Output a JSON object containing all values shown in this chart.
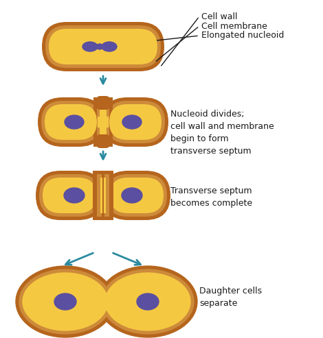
{
  "bg_color": "#ffffff",
  "wall_color": "#b5651d",
  "membrane_color": "#cd8b3a",
  "fill_color": "#f5c842",
  "nucleoid_color": "#5a4fa0",
  "arrow_color": "#2a8a9f",
  "label_color": "#1a1a1a",
  "line_color": "#111111",
  "labels_stage1": [
    "Cell wall",
    "Cell membrane",
    "Elongated nucleoid"
  ],
  "label_stage2": "Nucleoid divides;\ncell wall and membrane\nbegin to form\ntransverse septum",
  "label_stage3": "Transverse septum\nbecomes complete",
  "label_stage4": "Daughter cells\nseparate",
  "figsize": [
    4.7,
    4.93
  ],
  "dpi": 100
}
